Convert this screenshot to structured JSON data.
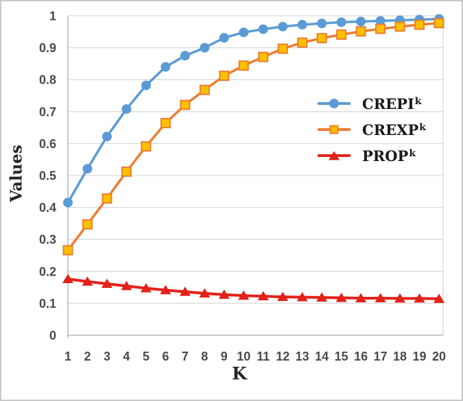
{
  "colors": {
    "background": "#FFFFFF",
    "figure_border": "#C9C9C9",
    "grid": "#D9D9D9",
    "axis": "#BFBFBF",
    "tick_label": "#4A4A4A",
    "axis_title": "#262626",
    "legend_text": "#1A1A1A"
  },
  "chart_data": {
    "type": "line",
    "title": "",
    "xlabel": "K",
    "ylabel": "Values",
    "x": [
      1,
      2,
      3,
      4,
      5,
      6,
      7,
      8,
      9,
      10,
      11,
      12,
      13,
      14,
      15,
      16,
      17,
      18,
      19,
      20
    ],
    "y_tick_labels": [
      "0",
      "0.1",
      "0.2",
      "0.3",
      "0.4",
      "0.5",
      "0.6",
      "0.7",
      "0.8",
      "0.9",
      "1"
    ],
    "ylim": [
      0,
      1
    ],
    "grid": true,
    "legend_position": "inside-right",
    "series": [
      {
        "name": "CREPI",
        "sup": "k",
        "marker": "circle",
        "color": "#5B9BD5",
        "marker_fill": "#5B9BD5",
        "values": [
          0.415,
          0.521,
          0.622,
          0.708,
          0.782,
          0.84,
          0.875,
          0.9,
          0.931,
          0.948,
          0.958,
          0.966,
          0.972,
          0.976,
          0.98,
          0.982,
          0.984,
          0.986,
          0.988,
          0.99
        ]
      },
      {
        "name": "CREXP",
        "sup": "k",
        "marker": "square",
        "color": "#ED7D31",
        "marker_fill": "#FFC000",
        "values": [
          0.266,
          0.347,
          0.428,
          0.512,
          0.591,
          0.664,
          0.721,
          0.768,
          0.812,
          0.844,
          0.871,
          0.897,
          0.916,
          0.93,
          0.941,
          0.951,
          0.959,
          0.966,
          0.972,
          0.977
        ]
      },
      {
        "name": "PROP",
        "sup": "k",
        "marker": "triangle",
        "color": "#E32119",
        "marker_fill": "#E32119",
        "values": [
          0.176,
          0.168,
          0.161,
          0.154,
          0.147,
          0.141,
          0.136,
          0.131,
          0.127,
          0.124,
          0.122,
          0.12,
          0.119,
          0.118,
          0.117,
          0.116,
          0.116,
          0.115,
          0.115,
          0.114
        ]
      }
    ]
  }
}
